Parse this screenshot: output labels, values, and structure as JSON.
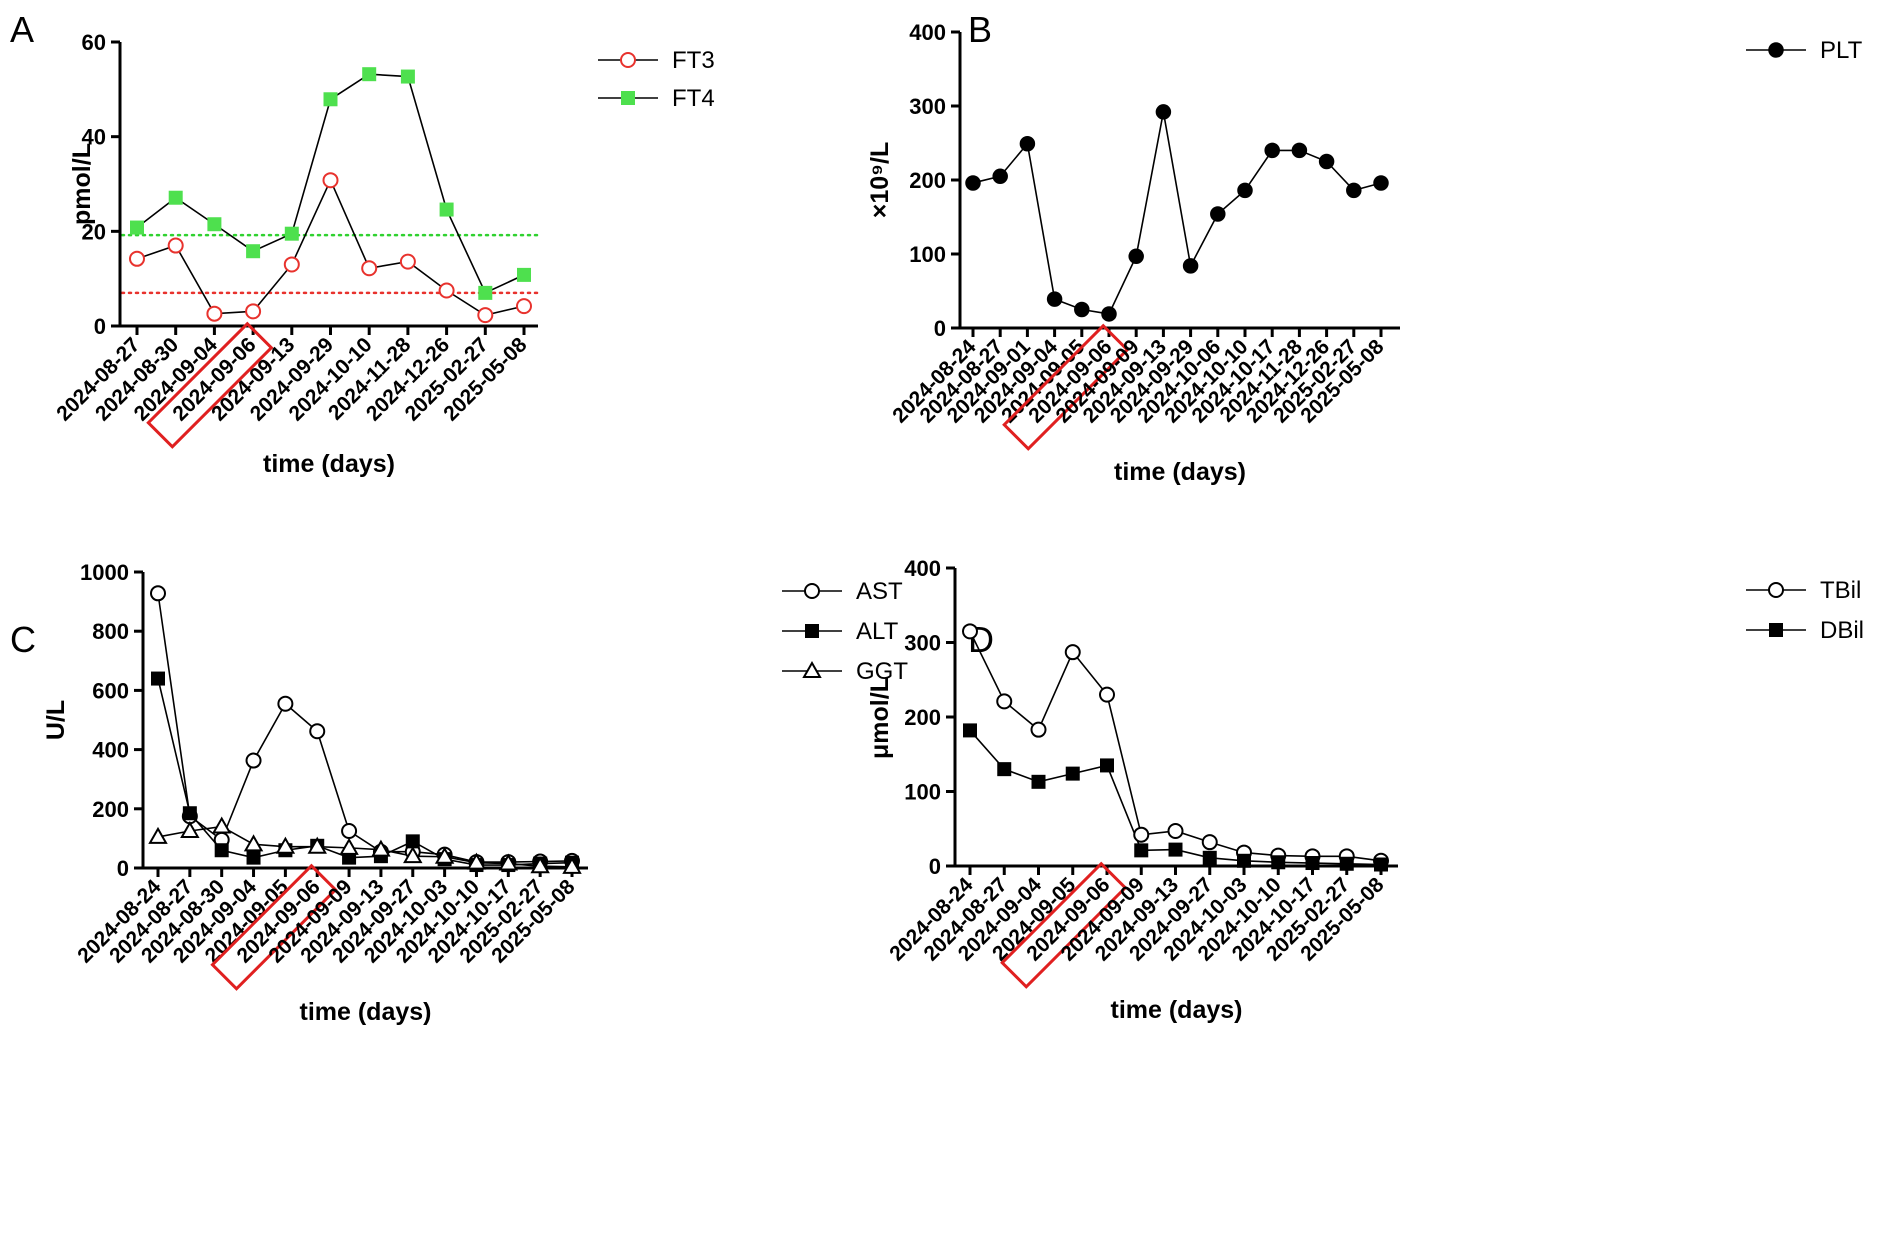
{
  "chart_data": [
    {
      "panel": "A",
      "type": "line",
      "xlabel": "time (days)",
      "ylabel": "pmol/L",
      "ylim": [
        0,
        60
      ],
      "yticks": [
        0,
        20,
        40,
        60
      ],
      "categories": [
        "2024-08-27",
        "2024-08-30",
        "2024-09-04",
        "2024-09-06",
        "2024-09-13",
        "2024-09-29",
        "2024-10-10",
        "2024-11-28",
        "2024-12-26",
        "2025-02-27",
        "2025-05-08"
      ],
      "highlight_category": "2024-09-06",
      "series": [
        {
          "name": "FT3",
          "marker": "circle-open",
          "color": "#e8322d",
          "values": [
            14.2,
            17.0,
            2.6,
            3.1,
            13.0,
            30.8,
            12.2,
            13.6,
            7.5,
            2.3,
            4.2
          ]
        },
        {
          "name": "FT4",
          "marker": "square",
          "color": "#4ee04e",
          "values": [
            20.8,
            27.1,
            21.5,
            15.8,
            19.5,
            47.9,
            53.2,
            52.7,
            24.6,
            7.0,
            10.8
          ]
        }
      ],
      "reference_lines": [
        {
          "value": 19.2,
          "color": "#2fd12f",
          "style": "dotted"
        },
        {
          "value": 7.0,
          "color": "#e8322d",
          "style": "dotted"
        }
      ],
      "legend": "right"
    },
    {
      "panel": "B",
      "type": "line",
      "xlabel": "time (days)",
      "ylabel": "×10⁹/L",
      "ylim": [
        0,
        400
      ],
      "yticks": [
        0,
        100,
        200,
        300,
        400
      ],
      "categories": [
        "2024-08-24",
        "2024-08-27",
        "2024-09-01",
        "2024-09-04",
        "2024-09-05",
        "2024-09-06",
        "2024-09-09",
        "2024-09-13",
        "2024-09-29",
        "2024-10-06",
        "2024-10-10",
        "2024-10-17",
        "2024-11-28",
        "2024-12-26",
        "2025-02-27",
        "2025-05-08"
      ],
      "highlight_category": "2024-09-06",
      "series": [
        {
          "name": "PLT",
          "marker": "circle",
          "color": "#000000",
          "values": [
            196,
            205,
            249,
            39,
            25,
            19,
            97,
            292,
            84,
            154,
            186,
            240,
            240,
            225,
            186,
            196
          ]
        }
      ],
      "legend": "right"
    },
    {
      "panel": "C",
      "type": "line",
      "xlabel": "time (days)",
      "ylabel": "U/L",
      "ylim": [
        0,
        1000
      ],
      "yticks": [
        0,
        200,
        400,
        600,
        800,
        1000
      ],
      "categories": [
        "2024-08-24",
        "2024-08-27",
        "2024-08-30",
        "2024-09-04",
        "2024-09-05",
        "2024-09-06",
        "2024-09-09",
        "2024-09-13",
        "2024-09-27",
        "2024-10-03",
        "2024-10-10",
        "2024-10-17",
        "2025-02-27",
        "2025-05-08"
      ],
      "highlight_category": "2024-09-06",
      "series": [
        {
          "name": "AST",
          "marker": "circle-open",
          "color": "#000000",
          "values": [
            928,
            175,
            95,
            363,
            555,
            462,
            125,
            55,
            55,
            45,
            20,
            20,
            22,
            24
          ]
        },
        {
          "name": "ALT",
          "marker": "square",
          "color": "#000000",
          "values": [
            640,
            185,
            60,
            35,
            60,
            75,
            35,
            40,
            90,
            30,
            10,
            10,
            15,
            18
          ]
        },
        {
          "name": "GGT",
          "marker": "triangle-open",
          "color": "#000000",
          "values": [
            105,
            125,
            140,
            80,
            72,
            72,
            68,
            62,
            40,
            38,
            18,
            15,
            6,
            4
          ]
        }
      ],
      "legend": "right"
    },
    {
      "panel": "D",
      "type": "line",
      "xlabel": "time (days)",
      "ylabel": "μmol/L",
      "ylim": [
        0,
        400
      ],
      "yticks": [
        0,
        100,
        200,
        300,
        400
      ],
      "categories": [
        "2024-08-24",
        "2024-08-27",
        "2024-09-04",
        "2024-09-05",
        "2024-09-06",
        "2024-09-09",
        "2024-09-13",
        "2024-09-27",
        "2024-10-03",
        "2024-10-10",
        "2024-10-17",
        "2025-02-27",
        "2025-05-08"
      ],
      "highlight_category": "2024-09-06",
      "series": [
        {
          "name": "TBil",
          "marker": "circle-open",
          "color": "#000000",
          "values": [
            315,
            221,
            183,
            287,
            230,
            42,
            47,
            32,
            18,
            14,
            13,
            13,
            7
          ]
        },
        {
          "name": "DBil",
          "marker": "square",
          "color": "#000000",
          "values": [
            182,
            130,
            113,
            124,
            135,
            21,
            22,
            11,
            7,
            5,
            4,
            3,
            2
          ]
        }
      ],
      "legend": "right"
    }
  ]
}
